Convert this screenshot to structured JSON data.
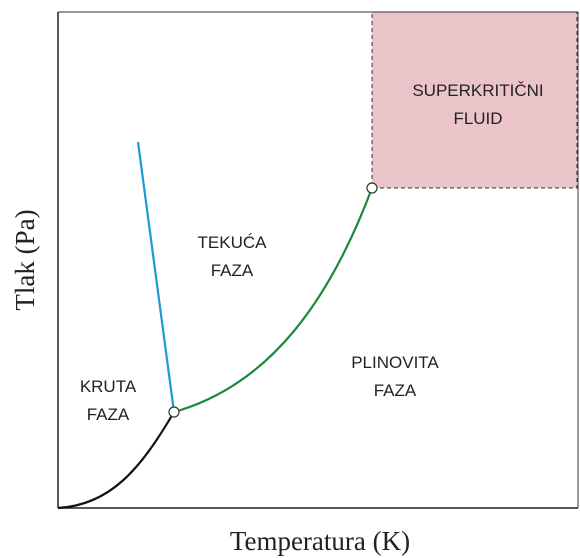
{
  "axes": {
    "x_label": "Temperatura (K)",
    "y_label": "Tlak (Pa)"
  },
  "regions": [
    {
      "lines": [
        "SUPERKRITIČNI",
        "FLUID"
      ]
    },
    {
      "lines": [
        "TEKUĆA",
        "FAZA"
      ]
    },
    {
      "lines": [
        "PLINOVITA",
        "FAZA"
      ]
    },
    {
      "lines": [
        "KRUTA",
        "FAZA"
      ]
    }
  ]
}
